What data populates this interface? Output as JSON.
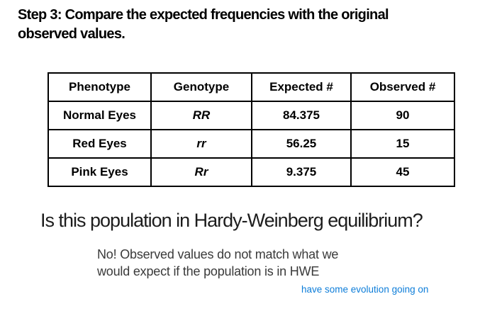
{
  "slide": {
    "title": "Step 3: Compare the expected frequencies with the original\nobserved values.",
    "question": "Is this population in Hardy-Weinberg equilibrium?",
    "answer": "No! Observed values do not match what we\nwould expect if the population is in HWE",
    "note": "have some evolution going on"
  },
  "table": {
    "headers": [
      "Phenotype",
      "Genotype",
      "Expected #",
      "Observed #"
    ],
    "rows": [
      {
        "phenotype": "Normal Eyes",
        "genotype": "RR",
        "expected": "84.375",
        "observed": "90"
      },
      {
        "phenotype": "Red Eyes",
        "genotype": "rr",
        "expected": "56.25",
        "observed": "15"
      },
      {
        "phenotype": "Pink Eyes",
        "genotype": "Rr",
        "expected": "9.375",
        "observed": "45"
      }
    ]
  },
  "colors": {
    "background": "#ffffff",
    "title_text": "#000000",
    "question_text": "#1d1d1d",
    "answer_text": "#3a3a3a",
    "note_text": "#0d7dd9",
    "table_border": "#000000"
  }
}
